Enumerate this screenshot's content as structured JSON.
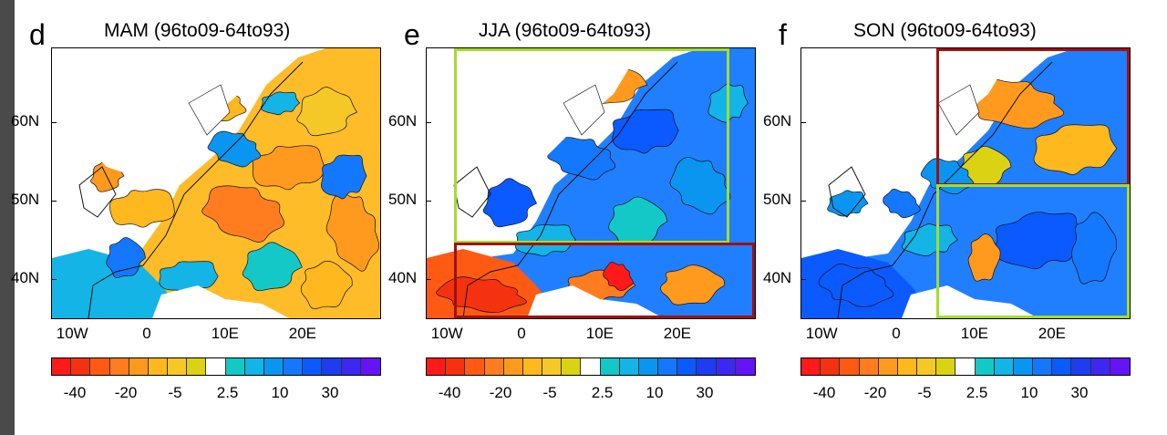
{
  "clipped_top_labels": [
    "10W",
    "0",
    "10E",
    "20E"
  ],
  "panels": [
    {
      "letter": "d",
      "title": "MAM  (96to09-64to93)",
      "highlight_boxes": []
    },
    {
      "letter": "e",
      "title": "JJA  (96to09-64to93)",
      "highlight_boxes": [
        {
          "color": "#a6dc2e",
          "region": "north"
        },
        {
          "color": "#a01010",
          "region": "south"
        }
      ]
    },
    {
      "letter": "f",
      "title": "SON  (96to09-64to93)",
      "highlight_boxes": [
        {
          "color": "#a01010",
          "region": "northeast"
        },
        {
          "color": "#a6dc2e",
          "region": "southeast"
        }
      ]
    }
  ],
  "lat_labels": [
    "60N",
    "50N",
    "40N"
  ],
  "lon_labels": [
    "10W",
    "0",
    "10E",
    "20E"
  ],
  "colorbar": {
    "colors": [
      "#ff1a1a",
      "#f4320f",
      "#ff5a14",
      "#ff7d1e",
      "#ff9a1e",
      "#ffb81e",
      "#f5c828",
      "#dcd214",
      "#ffffff",
      "#14c8c8",
      "#14b4e6",
      "#0a96f0",
      "#1478ff",
      "#0a5aff",
      "#1e3cf0",
      "#3c28f0",
      "#6414f5"
    ],
    "labels": [
      "-40",
      "-20",
      "-5",
      "2.5",
      "10",
      "30"
    ]
  }
}
